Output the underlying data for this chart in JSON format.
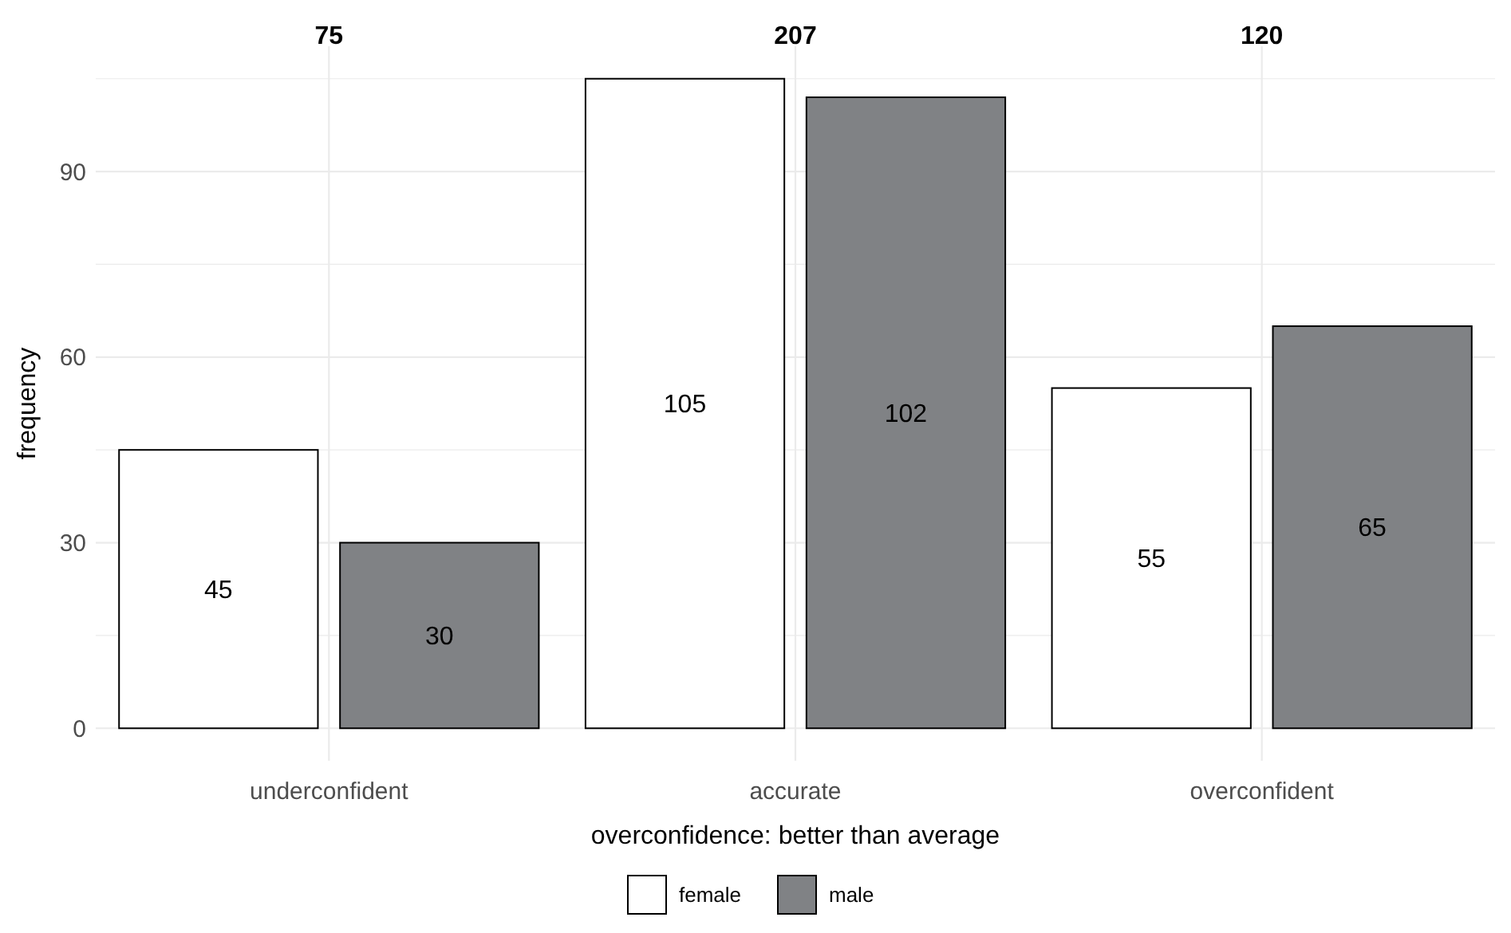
{
  "chart_data": {
    "type": "bar",
    "xlabel": "overconfidence: better than average",
    "ylabel": "frequency",
    "categories": [
      "underconfident",
      "accurate",
      "overconfident"
    ],
    "series": [
      {
        "name": "female",
        "color": "#ffffff",
        "values": [
          45,
          105,
          55
        ]
      },
      {
        "name": "male",
        "color": "#808285",
        "values": [
          30,
          102,
          65
        ]
      }
    ],
    "annotations": [
      "75",
      "207",
      "120"
    ],
    "ylim": [
      -5.25,
      110.25
    ],
    "yticks": [
      0,
      {
        "value": 15,
        "label": null
      },
      30,
      {
        "value": 45,
        "label": null
      },
      60,
      {
        "value": 75,
        "label": null
      },
      90,
      {
        "value": 105,
        "label": null
      }
    ],
    "grid": true,
    "legend": "bottom",
    "data_labels": true
  }
}
